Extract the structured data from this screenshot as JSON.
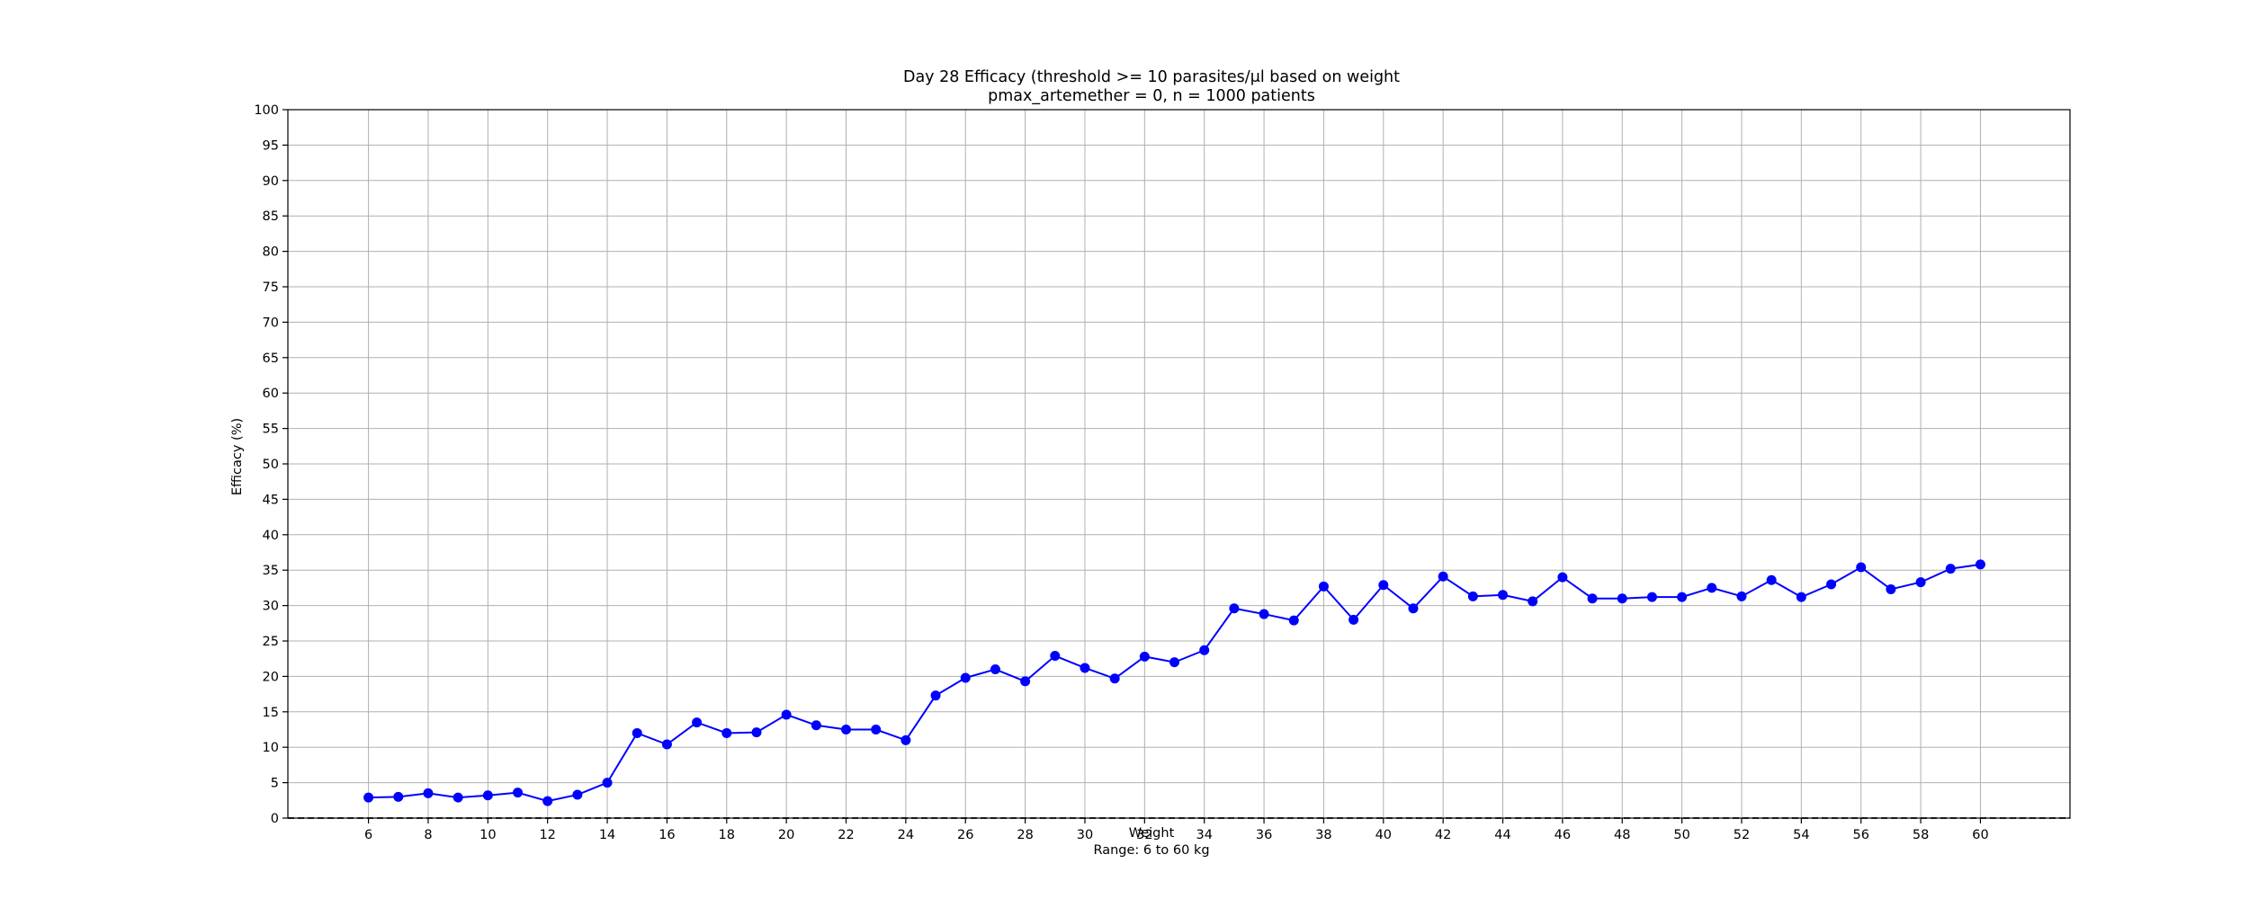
{
  "chart_data": {
    "type": "line",
    "title_line1": "Day 28 Efficacy (threshold >= 10 parasites/μl based on weight",
    "title_line2": "pmax_artemether = 0, n = 1000 patients",
    "xlabel": "Weight",
    "xlabel_sub": "Range: 6 to 60 kg",
    "ylabel": "Efficacy (%)",
    "xlim": [
      3.3,
      63
    ],
    "ylim": [
      0,
      100
    ],
    "x_ticks": [
      6,
      8,
      10,
      12,
      14,
      16,
      18,
      20,
      22,
      24,
      26,
      28,
      30,
      32,
      34,
      36,
      38,
      40,
      42,
      44,
      46,
      48,
      50,
      52,
      54,
      56,
      58,
      60
    ],
    "y_ticks": [
      0,
      5,
      10,
      15,
      20,
      25,
      30,
      35,
      40,
      45,
      50,
      55,
      60,
      65,
      70,
      75,
      80,
      85,
      90,
      95,
      100
    ],
    "grid": true,
    "reference_line": {
      "y": 0,
      "style": "dashed",
      "color": "#000000"
    },
    "series": [
      {
        "color": "#0000ff",
        "marker": "circle",
        "x": [
          6,
          7,
          8,
          9,
          10,
          11,
          12,
          13,
          14,
          15,
          16,
          17,
          18,
          19,
          20,
          21,
          22,
          23,
          24,
          25,
          26,
          27,
          28,
          29,
          30,
          31,
          32,
          33,
          34,
          35,
          36,
          37,
          38,
          39,
          40,
          41,
          42,
          43,
          44,
          45,
          46,
          47,
          48,
          49,
          50,
          51,
          52,
          53,
          54,
          55,
          56,
          57,
          58,
          59,
          60
        ],
        "values": [
          2.9,
          3.0,
          3.5,
          2.9,
          3.2,
          3.6,
          2.4,
          3.3,
          5.0,
          12.0,
          10.4,
          13.5,
          12.0,
          12.1,
          14.6,
          13.1,
          12.5,
          12.5,
          11.0,
          17.3,
          19.8,
          21.0,
          19.3,
          22.9,
          21.2,
          19.7,
          22.8,
          22.0,
          23.7,
          29.6,
          28.8,
          27.9,
          32.7,
          28.0,
          32.9,
          29.6,
          34.1,
          31.3,
          31.5,
          30.6,
          34.0,
          31.0,
          31.0,
          31.2,
          31.2,
          32.5,
          31.3,
          33.6,
          31.2,
          33.0,
          35.4,
          32.3,
          33.3,
          35.2,
          35.8
        ]
      }
    ]
  }
}
